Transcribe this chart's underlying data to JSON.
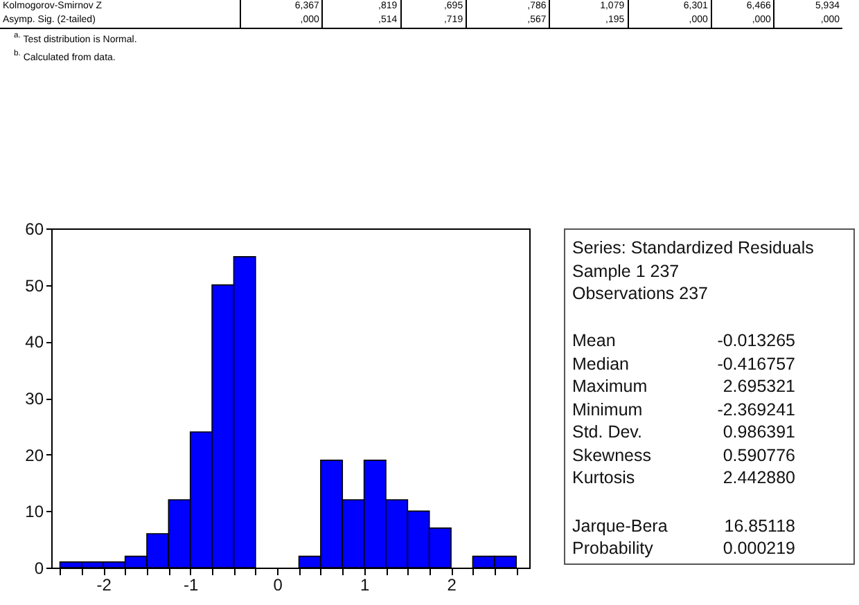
{
  "chart_data": {
    "type": "histogram",
    "bins": [
      -2.5,
      -2.25,
      -2,
      -1.75,
      -1.5,
      -1.25,
      -1,
      -0.75,
      -0.5,
      -0.25,
      0,
      0.25,
      0.5,
      0.75,
      1,
      1.25,
      1.5,
      1.75,
      2,
      2.25,
      2.5,
      2.75
    ],
    "values": [
      1,
      1,
      1,
      2,
      6,
      12,
      24,
      50,
      55,
      0,
      0,
      2,
      19,
      12,
      19,
      12,
      10,
      7,
      0,
      2,
      2
    ],
    "color": "#0000ff",
    "xlim": [
      -2.6,
      2.9
    ],
    "xticks": [
      {
        "value": -2.5,
        "label": null
      },
      {
        "value": -2.25,
        "label": null
      },
      -2,
      {
        "value": -1.75,
        "label": null
      },
      {
        "value": -1.5,
        "label": null
      },
      {
        "value": -1.25,
        "label": null
      },
      -1,
      {
        "value": -0.75,
        "label": null
      },
      {
        "value": -0.5,
        "label": null
      },
      {
        "value": -0.25,
        "label": null
      },
      0,
      {
        "value": 0.25,
        "label": null
      },
      {
        "value": 0.5,
        "label": null
      },
      {
        "value": 0.75,
        "label": null
      },
      1,
      {
        "value": 1.25,
        "label": null
      },
      {
        "value": 1.5,
        "label": null
      },
      {
        "value": 1.75,
        "label": null
      },
      2,
      {
        "value": 2.25,
        "label": null
      },
      {
        "value": 2.5,
        "label": null
      },
      {
        "value": 2.75,
        "label": null
      }
    ],
    "ylim": [
      0,
      60
    ],
    "yticks": [
      0,
      10,
      20,
      30,
      40,
      50,
      60
    ],
    "annotations": [
      "Kolmogorov-Smirnov Z",
      "6,367",
      ",819",
      ",695",
      ",786",
      "1,079",
      "6,301",
      "6,466",
      "5,934",
      "Asymp. Sig. (2-tailed)",
      ",000",
      ",514",
      ",719",
      ",567",
      ",195",
      ",000",
      ",000",
      ",000",
      "$^{a.}$ Test distribution is Normal.",
      "$^{b.}$ Calculated from data.",
      "Series: Standardized Residuals",
      "Sample 1 237",
      "Observations 237",
      "Mean",
      "-0.013265",
      "Median",
      "-0.416757",
      "Maximum",
      "2.695321",
      "Minimum",
      "-2.369241",
      "Std. Dev.",
      "0.986391",
      "Skewness",
      "0.590776",
      "Kurtosis",
      "2.442880",
      "Jarque-Bera",
      "16.85118",
      "Probability",
      "0.000219"
    ]
  }
}
